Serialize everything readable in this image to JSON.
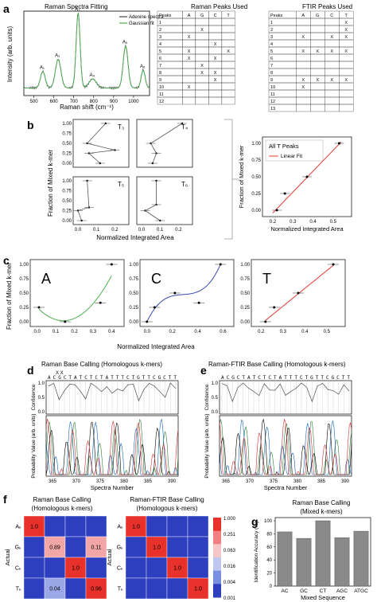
{
  "panel_a": {
    "letter": "a",
    "spectra_title": "Raman Spectra Fitting",
    "legend": [
      "Adenine spectra",
      "Gaussian fit"
    ],
    "xlabel": "Raman shift (cm⁻¹)",
    "ylabel": "Intensity (arb. units)",
    "xticks": [
      "500",
      "600",
      "700",
      "800",
      "900",
      "1000"
    ],
    "peak_labels": [
      "A₁",
      "A₂",
      "A₃",
      "A₄",
      "A₅",
      "A₆"
    ],
    "raman_table": {
      "title": "Raman Peaks Used",
      "headers": [
        "Peaks",
        "A",
        "G",
        "C",
        "T"
      ],
      "rows": [
        [
          "1",
          "",
          "",
          "",
          ""
        ],
        [
          "2",
          "",
          "X",
          "",
          ""
        ],
        [
          "3",
          "X",
          "",
          "",
          ""
        ],
        [
          "4",
          "",
          "",
          "X",
          ""
        ],
        [
          "5",
          "X",
          "",
          "",
          "X"
        ],
        [
          "6",
          "X",
          "",
          "X",
          ""
        ],
        [
          "7",
          "",
          "X",
          "",
          ""
        ],
        [
          "8",
          "",
          "X",
          "X",
          ""
        ],
        [
          "9",
          "",
          "",
          "X",
          ""
        ],
        [
          "10",
          "X",
          "",
          "",
          ""
        ],
        [
          "11",
          "",
          "",
          "",
          ""
        ],
        [
          "12",
          "",
          "",
          "",
          ""
        ]
      ]
    },
    "ftir_table": {
      "title": "FTIR Peaks Used",
      "headers": [
        "Peaks",
        "A",
        "G",
        "C",
        "T"
      ],
      "rows": [
        [
          "1",
          "",
          "",
          "",
          "X"
        ],
        [
          "2",
          "",
          "",
          "",
          "X"
        ],
        [
          "3",
          "X",
          "",
          "X",
          "X"
        ],
        [
          "4",
          "",
          "",
          "",
          ""
        ],
        [
          "5",
          "X",
          "X",
          "X",
          "X"
        ],
        [
          "6",
          "",
          "",
          "",
          ""
        ],
        [
          "7",
          "",
          "",
          "",
          ""
        ],
        [
          "8",
          "",
          "",
          "",
          ""
        ],
        [
          "9",
          "X",
          "X",
          "X",
          "X"
        ],
        [
          "10",
          "X",
          "",
          "",
          ""
        ],
        [
          "11",
          "",
          "",
          "",
          ""
        ],
        [
          "12",
          "",
          "",
          "",
          ""
        ],
        [
          "13",
          "",
          "",
          "",
          ""
        ]
      ]
    }
  },
  "panel_b": {
    "letter": "b",
    "ylabel": "Fraction of Mixed k-mer",
    "xlabel": "Normalized Integrated Area",
    "subplot_labels": [
      "T₃",
      "T₄",
      "T₅",
      "T₆"
    ],
    "yticks": [
      "0.00",
      "0.25",
      "0.50",
      "0.75",
      "1.00"
    ],
    "xticks_small": [
      "0.0",
      "0.1",
      "0.2"
    ],
    "all_t": {
      "title": "All T Peaks",
      "legend": "Linear Fit",
      "xticks": [
        "0.2",
        "0.3",
        "0.4",
        "0.5"
      ],
      "yticks": [
        "0.00",
        "0.25",
        "0.50",
        "0.75",
        "1.00"
      ],
      "ylabel": "Fraction of Mixed k-mer",
      "xlabel": "Normalized Integrated Area",
      "x": [
        0.22,
        0.26,
        0.37,
        0.53
      ],
      "y": [
        0.0,
        0.25,
        0.5,
        1.0
      ]
    }
  },
  "panel_c": {
    "letter": "c",
    "ylabel": "Fraction of Mixed k-mer",
    "xlabel": "Normalized Integrated Area",
    "yticks": [
      "0.00",
      "0.25",
      "0.50",
      "0.75",
      "1.00"
    ],
    "subplots": [
      {
        "label": "A",
        "xticks": [
          "0.0",
          "0.1",
          "0.2",
          "0.3",
          "0.4"
        ],
        "x": [
          0.01,
          0.15,
          0.34,
          0.4
        ],
        "y": [
          0.25,
          0.0,
          0.33,
          1.0
        ]
      },
      {
        "label": "C",
        "xticks": [
          "0.0",
          "0.2",
          "0.4",
          "0.6"
        ],
        "x": [
          0.0,
          0.06,
          0.22,
          0.41,
          0.58
        ],
        "y": [
          0.0,
          0.25,
          0.5,
          0.33,
          1.0
        ]
      },
      {
        "label": "T",
        "xticks": [
          "0.2",
          "0.3",
          "0.4",
          "0.5"
        ],
        "x": [
          0.22,
          0.26,
          0.37,
          0.53
        ],
        "y": [
          0.0,
          0.25,
          0.5,
          1.0
        ]
      }
    ]
  },
  "panel_d": {
    "letter": "d",
    "title": "Raman Base Calling (Homologous k-mers)",
    "sequence": "ACGCTATCTCTATTTCTGTTCGCTT",
    "marks": "X X",
    "ylabel_top": "Confidence",
    "ylabel_bottom": "Probability Value (arb. units)",
    "yticks": [
      "0.0",
      "0.5",
      "1.0"
    ],
    "xticks": [
      "365",
      "370",
      "375",
      "380",
      "385",
      "390"
    ],
    "xlabel": "Spectra Number"
  },
  "panel_e": {
    "letter": "e",
    "title": "Raman-FTIR Base Calling (Homologous k-mers)",
    "sequence": "ACGCTATCTCTATTTCTGTTCGCTT",
    "ylabel_top": "Confidence",
    "ylabel_bottom": "Probability Value (arb. units)",
    "yticks": [
      "0.0",
      "0.5",
      "1.0"
    ],
    "xticks": [
      "365",
      "370",
      "375",
      "380",
      "385",
      "390"
    ],
    "xlabel": "Spectra Number"
  },
  "panel_f": {
    "letter": "f",
    "title1": "Raman Base Calling",
    "subtitle1": "(Homologous k-mers)",
    "title2": "Raman-FTIR Base Calling",
    "subtitle2": "(Homologous k-mers)",
    "ylabel": "Actual",
    "xlabel": "Predicted",
    "labels": [
      "Aₖ",
      "Gₖ",
      "Cₖ",
      "Tₖ"
    ],
    "matrix1": [
      [
        1.0,
        0,
        0,
        0
      ],
      [
        0,
        0.89,
        0,
        0.11
      ],
      [
        0,
        0,
        1.0,
        0
      ],
      [
        0,
        0.04,
        0,
        0.96
      ]
    ],
    "matrix1_text": [
      [
        "1.0",
        "",
        "",
        ""
      ],
      [
        "",
        "0.89",
        "",
        "0.11"
      ],
      [
        "",
        "",
        "1.0",
        ""
      ],
      [
        "",
        "0.04",
        "",
        "0.96"
      ]
    ],
    "matrix2_text": [
      [
        "1.0",
        "",
        "",
        ""
      ],
      [
        "",
        "1.0",
        "",
        ""
      ],
      [
        "",
        "",
        "1.0",
        ""
      ],
      [
        "",
        "",
        "",
        "1.0"
      ]
    ],
    "colorbar_ticks": [
      "1.000",
      "0.251",
      "0.063",
      "0.016",
      "0.004",
      "0.001"
    ]
  },
  "panel_g": {
    "letter": "g",
    "title": "Raman Base Calling",
    "subtitle": "(Mixed k-mers)",
    "ylabel": "Identification Accuracy (%)",
    "xlabel": "Mixed Sequence",
    "yticks": [
      "0",
      "20",
      "40",
      "60",
      "80",
      "100"
    ]
  },
  "chart_data": {
    "type": "bar",
    "title": "Raman Base Calling",
    "categories": [
      "AC",
      "GC",
      "CT",
      "AGC",
      "ATGC"
    ],
    "values": [
      83,
      73,
      100,
      74,
      84
    ],
    "ylabel": "Identification Accuracy (%)",
    "xlabel": "Mixed Sequence",
    "ylim": [
      0,
      100
    ]
  },
  "colors": {
    "green": "#4caf50",
    "blue": "#3949ab",
    "red": "#e53935",
    "heat_high": "#e8312a",
    "heat_low": "#2d3fbf",
    "bar": "#8a8a8a"
  }
}
